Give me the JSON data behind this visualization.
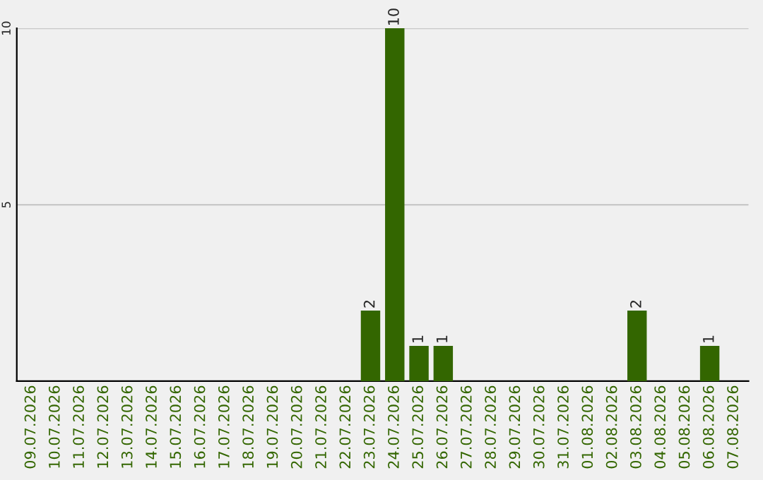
{
  "chart_data": {
    "type": "bar",
    "categories": [
      "09.07.2026",
      "10.07.2026",
      "11.07.2026",
      "12.07.2026",
      "13.07.2026",
      "14.07.2026",
      "15.07.2026",
      "16.07.2026",
      "17.07.2026",
      "18.07.2026",
      "19.07.2026",
      "20.07.2026",
      "21.07.2026",
      "22.07.2026",
      "23.07.2026",
      "24.07.2026",
      "25.07.2026",
      "26.07.2026",
      "27.07.2026",
      "28.07.2026",
      "29.07.2026",
      "30.07.2026",
      "31.07.2026",
      "01.08.2026",
      "02.08.2026",
      "03.08.2026",
      "04.08.2026",
      "05.08.2026",
      "06.08.2026",
      "07.08.2026"
    ],
    "values": [
      0,
      0,
      0,
      0,
      0,
      0,
      0,
      0,
      0,
      0,
      0,
      0,
      0,
      0,
      2,
      10,
      1,
      1,
      0,
      0,
      0,
      0,
      0,
      0,
      0,
      2,
      0,
      0,
      1,
      0
    ],
    "value_labels": [
      null,
      null,
      null,
      null,
      null,
      null,
      null,
      null,
      null,
      null,
      null,
      null,
      null,
      null,
      "2",
      "10",
      "1",
      "1",
      null,
      null,
      null,
      null,
      null,
      null,
      null,
      "2",
      null,
      null,
      "1",
      null
    ],
    "color": "#336600",
    "ylim": [
      0,
      10
    ],
    "yticks": [
      5,
      10
    ],
    "grid": "y"
  }
}
